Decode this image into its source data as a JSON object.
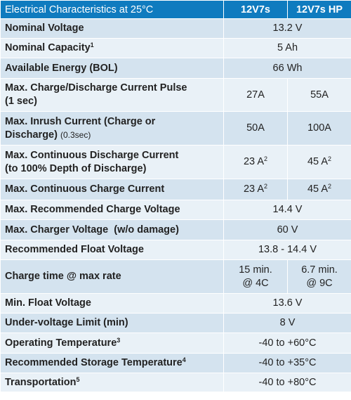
{
  "header": {
    "title": "Electrical Characteristics at 25°C",
    "col1": "12V7s",
    "col2": "12V7s HP"
  },
  "rows": [
    {
      "label": "Nominal Voltage",
      "value": "13.2 V"
    },
    {
      "label": "Nominal Capacity",
      "sup": "1",
      "value": "5 Ah"
    },
    {
      "label": "Available Energy (BOL)",
      "value": "66 Wh"
    },
    {
      "label": "Max. Charge/Discharge Current Pulse",
      "label2": "(1 sec)",
      "v1": "27A",
      "v2": "55A"
    },
    {
      "label": "Max. Inrush Current (Charge or",
      "label2": "Discharge)",
      "note": "(0.3sec)",
      "v1": "50A",
      "v2": "100A"
    },
    {
      "label": "Max. Continuous Discharge Current",
      "label2": "(to 100% Depth of Discharge)",
      "v1": "23 A",
      "v1_sup": "2",
      "v2": "45 A",
      "v2_sup": "2"
    },
    {
      "label": "Max. Continuous Charge Current",
      "v1": "23 A",
      "v1_sup": "2",
      "v2": "45 A",
      "v2_sup": "2"
    },
    {
      "label": "Max. Recommended Charge Voltage",
      "value": "14.4 V"
    },
    {
      "label": "Max. Charger Voltage  (w/o damage)",
      "value": "60 V"
    },
    {
      "label": "Recommended Float Voltage",
      "value": "13.8 - 14.4 V"
    },
    {
      "label": "Charge time @ max rate",
      "v1": "15 min.",
      "v1_line2": "@ 4C",
      "v2": "6.7 min.",
      "v2_line2": "@ 9C"
    },
    {
      "label": "Min. Float Voltage",
      "value": "13.6 V"
    },
    {
      "label": "Under-voltage Limit (min)",
      "value": "8 V"
    },
    {
      "label": "Operating Temperature",
      "sup": "3",
      "value": "-40 to +60°C"
    },
    {
      "label": "Recommended Storage Temperature",
      "sup": "4",
      "value": "-40 to +35°C"
    },
    {
      "label": "Transportation",
      "sup": "5",
      "value": "-40 to +80°C"
    }
  ]
}
